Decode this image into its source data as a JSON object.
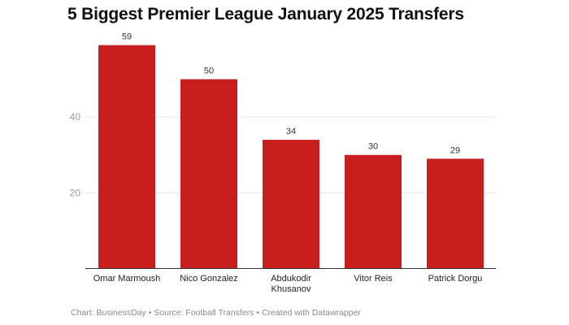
{
  "chart_data": {
    "type": "bar",
    "title": "5 Biggest Premier League January 2025 Transfers",
    "categories": [
      "Omar Marmoush",
      "Nico Gonzalez",
      "Abdukodir Khusanov",
      "Vitor Reis",
      "Patrick Dorgu"
    ],
    "category_lines": [
      [
        "Omar Marmoush"
      ],
      [
        "Nico Gonzalez"
      ],
      [
        "Abdukodir",
        "Khusanov"
      ],
      [
        "Vitor Reis"
      ],
      [
        "Patrick Dorgu"
      ]
    ],
    "values": [
      59,
      50,
      34,
      30,
      29
    ],
    "yticks": [
      20,
      40
    ],
    "ylim": [
      0,
      60
    ],
    "xlabel": "",
    "ylabel": "",
    "grid": true,
    "bar_color": "#c81e1e",
    "footer": "Chart: BusinessDay • Source: Football Transfers • Created with Datawrapper"
  }
}
